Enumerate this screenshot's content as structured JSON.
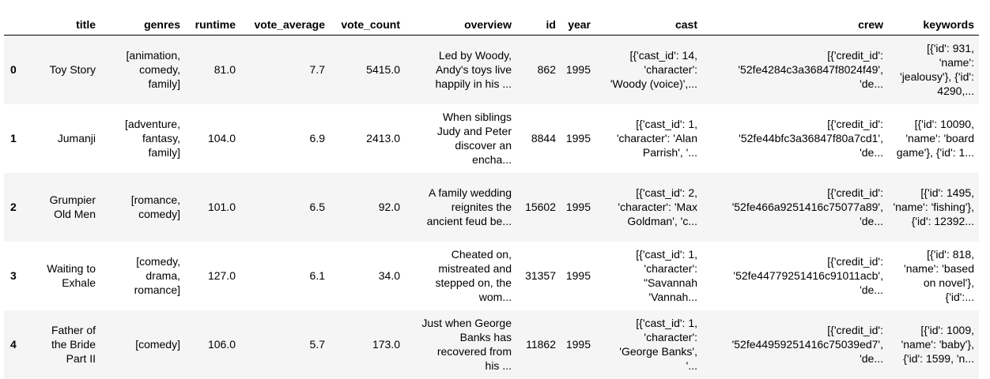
{
  "columns": [
    "",
    "title",
    "genres",
    "runtime",
    "vote_average",
    "vote_count",
    "overview",
    "id",
    "year",
    "cast",
    "crew",
    "keywords"
  ],
  "rows": [
    {
      "index": "0",
      "title": "Toy Story",
      "genres": "[animation,\ncomedy,\nfamily]",
      "runtime": "81.0",
      "vote_average": "7.7",
      "vote_count": "5415.0",
      "overview": "Led by Woody,\nAndy's toys live\nhappily in his ...",
      "id": "862",
      "year": "1995",
      "cast": "[{'cast_id': 14,\n'character':\n'Woody (voice)',...",
      "crew": "[{'credit_id':\n'52fe4284c3a36847f8024f49',\n'de...",
      "keywords": "[{'id': 931,\n'name':\n'jealousy'}, {'id':\n4290,..."
    },
    {
      "index": "1",
      "title": "Jumanji",
      "genres": "[adventure,\nfantasy,\nfamily]",
      "runtime": "104.0",
      "vote_average": "6.9",
      "vote_count": "2413.0",
      "overview": "When siblings\nJudy and Peter\ndiscover an\nencha...",
      "id": "8844",
      "year": "1995",
      "cast": "[{'cast_id': 1,\n'character': 'Alan\nParrish', '...",
      "crew": "[{'credit_id':\n'52fe44bfc3a36847f80a7cd1',\n'de...",
      "keywords": "[{'id': 10090,\n'name': 'board\ngame'}, {'id': 1..."
    },
    {
      "index": "2",
      "title": "Grumpier\nOld Men",
      "genres": "[romance,\ncomedy]",
      "runtime": "101.0",
      "vote_average": "6.5",
      "vote_count": "92.0",
      "overview": "A family wedding\nreignites the\nancient feud be...",
      "id": "15602",
      "year": "1995",
      "cast": "[{'cast_id': 2,\n'character': 'Max\nGoldman', 'c...",
      "crew": "[{'credit_id':\n'52fe466a9251416c75077a89',\n'de...",
      "keywords": "[{'id': 1495,\n'name': 'fishing'},\n{'id': 12392..."
    },
    {
      "index": "3",
      "title": "Waiting to\nExhale",
      "genres": "[comedy,\ndrama,\nromance]",
      "runtime": "127.0",
      "vote_average": "6.1",
      "vote_count": "34.0",
      "overview": "Cheated on,\nmistreated and\nstepped on, the\nwom...",
      "id": "31357",
      "year": "1995",
      "cast": "[{'cast_id': 1,\n'character':\n\"Savannah\n'Vannah...",
      "crew": "[{'credit_id':\n'52fe44779251416c91011acb',\n'de...",
      "keywords": "[{'id': 818,\n'name': 'based\non novel'}, {'id':..."
    },
    {
      "index": "4",
      "title": "Father of\nthe Bride\nPart II",
      "genres": "[comedy]",
      "runtime": "106.0",
      "vote_average": "5.7",
      "vote_count": "173.0",
      "overview": "Just when George\nBanks has\nrecovered from\nhis ...",
      "id": "11862",
      "year": "1995",
      "cast": "[{'cast_id': 1,\n'character':\n'George Banks',\n'...",
      "crew": "[{'credit_id':\n'52fe44959251416c75039ed7',\n'de...",
      "keywords": "[{'id': 1009,\n'name': 'baby'},\n{'id': 1599, 'n..."
    }
  ]
}
